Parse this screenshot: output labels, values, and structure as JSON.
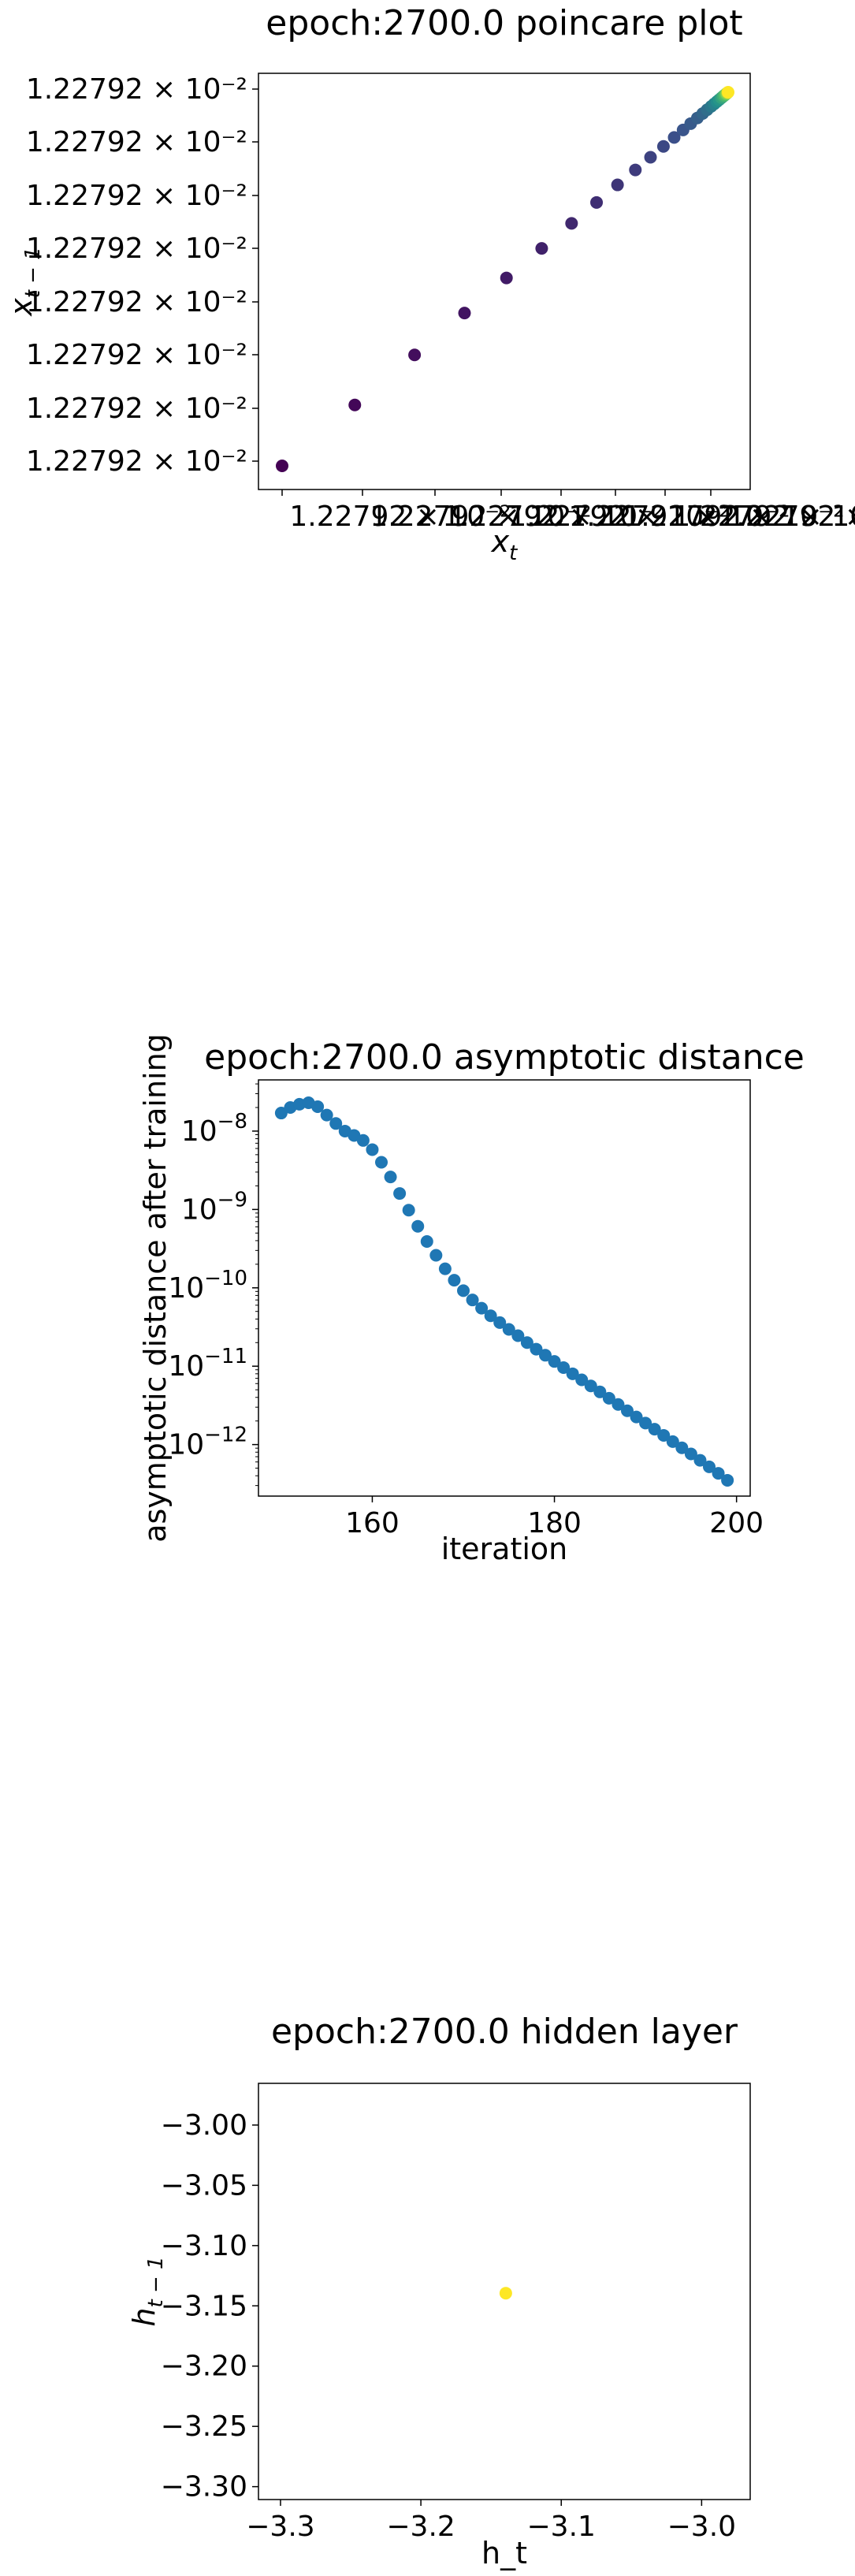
{
  "chart_data": [
    {
      "type": "scatter",
      "title": "epoch:2700.0 poincare plot",
      "xlabel": "x_t",
      "ylabel": "x_{t-1}",
      "colormap": "viridis",
      "x_tick_labels": [
        "1.22792 × 10⁻²",
        "1.22792 × 10⁻²",
        "1.22792 × 10⁻²",
        "1.22792 × 10⁻²",
        "1.22792 × 10⁻²",
        "1.22792 × 10⁻²",
        "1.22792 × 10⁻²",
        "1.22792 × 10⁻²"
      ],
      "y_tick_labels": [
        "1.22792 × 10⁻²",
        "1.22792 × 10⁻²",
        "1.22792 × 10⁻²",
        "1.22792 × 10⁻²",
        "1.22792 × 10⁻²",
        "1.22792 × 10⁻²",
        "1.22792 × 10⁻²",
        "1.22792 × 10⁻²"
      ],
      "points": [
        {
          "x": 0.0,
          "y": 0.0,
          "c": 0.0
        },
        {
          "x": 0.163,
          "y": 0.163,
          "c": 0.02
        },
        {
          "x": 0.297,
          "y": 0.297,
          "c": 0.04
        },
        {
          "x": 0.409,
          "y": 0.409,
          "c": 0.06
        },
        {
          "x": 0.503,
          "y": 0.503,
          "c": 0.08
        },
        {
          "x": 0.582,
          "y": 0.582,
          "c": 0.1
        },
        {
          "x": 0.649,
          "y": 0.649,
          "c": 0.12
        },
        {
          "x": 0.705,
          "y": 0.705,
          "c": 0.14
        },
        {
          "x": 0.752,
          "y": 0.752,
          "c": 0.16
        },
        {
          "x": 0.792,
          "y": 0.792,
          "c": 0.18
        },
        {
          "x": 0.826,
          "y": 0.826,
          "c": 0.2
        },
        {
          "x": 0.855,
          "y": 0.855,
          "c": 0.22
        },
        {
          "x": 0.879,
          "y": 0.879,
          "c": 0.24
        },
        {
          "x": 0.899,
          "y": 0.899,
          "c": 0.26
        },
        {
          "x": 0.916,
          "y": 0.916,
          "c": 0.28
        },
        {
          "x": 0.931,
          "y": 0.931,
          "c": 0.3
        },
        {
          "x": 0.943,
          "y": 0.943,
          "c": 0.33
        },
        {
          "x": 0.953,
          "y": 0.953,
          "c": 0.36
        },
        {
          "x": 0.962,
          "y": 0.962,
          "c": 0.4
        },
        {
          "x": 0.969,
          "y": 0.969,
          "c": 0.44
        },
        {
          "x": 0.975,
          "y": 0.975,
          "c": 0.48
        },
        {
          "x": 0.98,
          "y": 0.98,
          "c": 0.52
        },
        {
          "x": 0.985,
          "y": 0.985,
          "c": 0.57
        },
        {
          "x": 0.989,
          "y": 0.989,
          "c": 0.62
        },
        {
          "x": 0.992,
          "y": 0.992,
          "c": 0.68
        },
        {
          "x": 0.995,
          "y": 0.995,
          "c": 0.74
        },
        {
          "x": 0.997,
          "y": 0.997,
          "c": 0.81
        },
        {
          "x": 0.999,
          "y": 0.999,
          "c": 0.9
        },
        {
          "x": 1.0,
          "y": 1.0,
          "c": 1.0
        }
      ]
    },
    {
      "type": "scatter",
      "title": "epoch:2700.0 asymptotic distance",
      "xlabel": "iteration",
      "ylabel": "asymptotic distance after training",
      "yscale": "log",
      "color": "#1f77b4",
      "x_ticks": [
        160,
        180,
        200
      ],
      "xlim": [
        147.5,
        201.5
      ],
      "y_ticks": [
        1e-12,
        1e-11,
        1e-10,
        1e-09,
        1e-08
      ],
      "ylim": [
        2.2e-13,
        4.5e-08
      ],
      "x": [
        150,
        151,
        152,
        153,
        154,
        155,
        156,
        157,
        158,
        159,
        160,
        161,
        162,
        163,
        164,
        165,
        166,
        167,
        168,
        169,
        170,
        171,
        172,
        173,
        174,
        175,
        176,
        177,
        178,
        179,
        180,
        181,
        182,
        183,
        184,
        185,
        186,
        187,
        188,
        189,
        190,
        191,
        192,
        193,
        194,
        195,
        196,
        197,
        198,
        199
      ],
      "y": [
        1.7e-08,
        2e-08,
        2.2e-08,
        2.3e-08,
        2.05e-08,
        1.6e-08,
        1.25e-08,
        1e-08,
        8.8e-09,
        7.6e-09,
        5.8e-09,
        4e-09,
        2.6e-09,
        1.6e-09,
        9.8e-10,
        6.1e-10,
        3.9e-10,
        2.6e-10,
        1.75e-10,
        1.25e-10,
        9.2e-11,
        7e-11,
        5.5e-11,
        4.4e-11,
        3.6e-11,
        2.95e-11,
        2.45e-11,
        2e-11,
        1.65e-11,
        1.38e-11,
        1.15e-11,
        9.6e-12,
        8e-12,
        6.7e-12,
        5.6e-12,
        4.7e-12,
        3.9e-12,
        3.25e-12,
        2.7e-12,
        2.25e-12,
        1.88e-12,
        1.57e-12,
        1.31e-12,
        1.09e-12,
        9.1e-13,
        7.6e-13,
        6.3e-13,
        5.2e-13,
        4.3e-13,
        3.5e-13
      ]
    },
    {
      "type": "scatter",
      "title": "epoch:2700.0 hidden layer",
      "xlabel": "h_t",
      "ylabel": "h_{t-1}",
      "color": "#fde725",
      "x_ticks": [
        -3.3,
        -3.2,
        -3.1,
        -3.0
      ],
      "x_tick_labels": [
        "−3.3",
        "−3.2",
        "−3.1",
        "−3.0"
      ],
      "xlim": [
        -3.3157,
        -2.9654
      ],
      "y_ticks": [
        -3.0,
        -3.05,
        -3.1,
        -3.15,
        -3.2,
        -3.25,
        -3.3
      ],
      "y_tick_labels": [
        "−3.00",
        "−3.05",
        "−3.10",
        "−3.15",
        "−3.20",
        "−3.25",
        "−3.30"
      ],
      "ylim": [
        -3.3107,
        -2.9654
      ],
      "points": [
        {
          "x": -3.1395,
          "y": -3.1395
        }
      ]
    }
  ]
}
